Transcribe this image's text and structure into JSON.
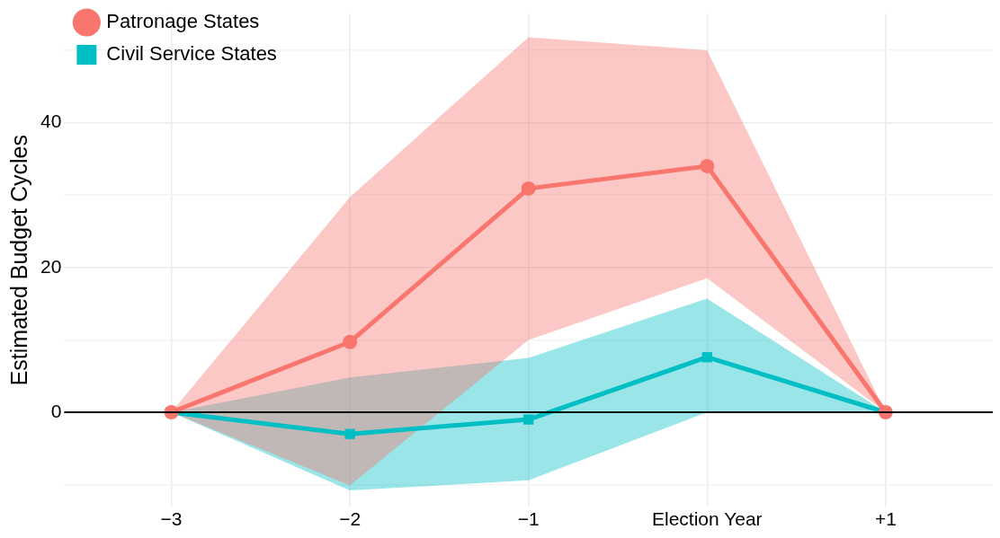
{
  "chart_data": {
    "type": "line",
    "ylabel": "Estimated Budget Cycles",
    "categories": [
      "−3",
      "−2",
      "−1",
      "Election Year",
      "+1"
    ],
    "series": [
      {
        "name": "Patronage States",
        "color": "#f8766d",
        "marker": "circle",
        "values": [
          0,
          9.7,
          30.9,
          34.0,
          0
        ],
        "lower": [
          0,
          -10.1,
          10.0,
          18.5,
          0
        ],
        "upper": [
          0,
          29.7,
          51.8,
          50.0,
          0
        ]
      },
      {
        "name": "Civil Service States",
        "color": "#00bfc4",
        "marker": "square",
        "values": [
          0,
          -3.0,
          -1.0,
          7.6,
          0
        ],
        "lower": [
          0,
          -10.8,
          -9.4,
          0,
          0
        ],
        "upper": [
          0,
          4.8,
          7.5,
          15.7,
          0
        ]
      }
    ],
    "ylim": [
      -13,
      55
    ],
    "yticks": [
      {
        "value": -10,
        "label": null
      },
      0,
      {
        "value": 10,
        "label": null
      },
      20,
      {
        "value": 30,
        "label": null
      },
      40,
      {
        "value": 50,
        "label": null
      }
    ],
    "ref_lines": [
      {
        "axis": "y",
        "value": 0,
        "color": "#000000"
      }
    ],
    "grid": true,
    "legend": "top left",
    "line_style": "solid"
  }
}
